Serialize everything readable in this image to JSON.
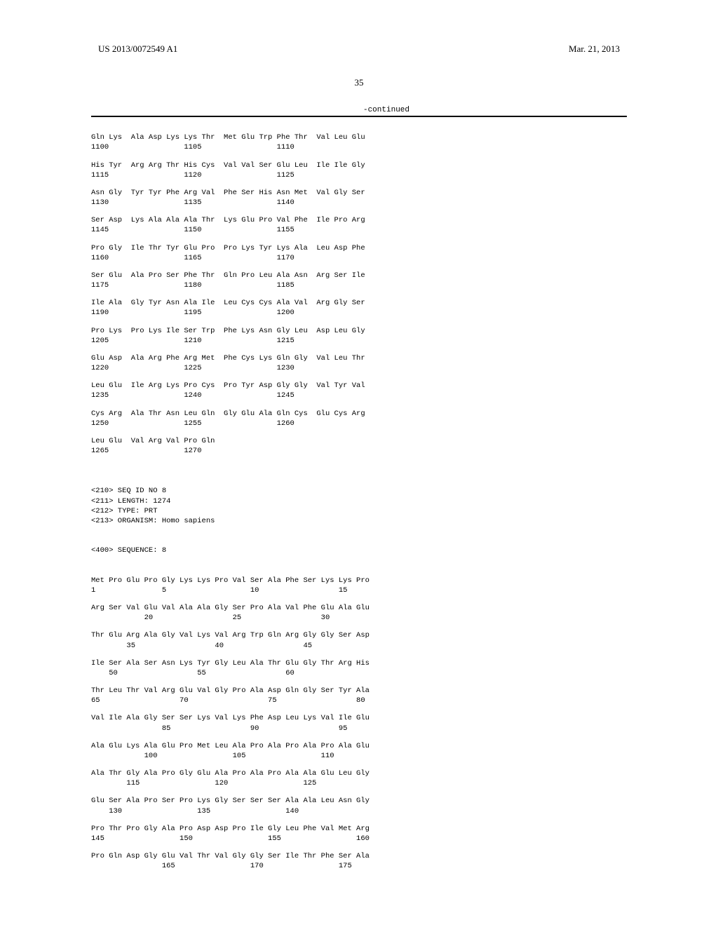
{
  "header": {
    "left": "US 2013/0072549 A1",
    "right": "Mar. 21, 2013",
    "page_number": "35",
    "continued": "-continued"
  },
  "seq1": {
    "rows": [
      {
        "aa": "Gln Lys  Ala Asp Lys Lys Thr  Met Glu Trp Phe Thr  Val Leu Glu",
        "pos": "1100                 1105                 1110"
      },
      {
        "aa": "His Tyr  Arg Arg Thr His Cys  Val Val Ser Glu Leu  Ile Ile Gly",
        "pos": "1115                 1120                 1125"
      },
      {
        "aa": "Asn Gly  Tyr Tyr Phe Arg Val  Phe Ser His Asn Met  Val Gly Ser",
        "pos": "1130                 1135                 1140"
      },
      {
        "aa": "Ser Asp  Lys Ala Ala Ala Thr  Lys Glu Pro Val Phe  Ile Pro Arg",
        "pos": "1145                 1150                 1155"
      },
      {
        "aa": "Pro Gly  Ile Thr Tyr Glu Pro  Pro Lys Tyr Lys Ala  Leu Asp Phe",
        "pos": "1160                 1165                 1170"
      },
      {
        "aa": "Ser Glu  Ala Pro Ser Phe Thr  Gln Pro Leu Ala Asn  Arg Ser Ile",
        "pos": "1175                 1180                 1185"
      },
      {
        "aa": "Ile Ala  Gly Tyr Asn Ala Ile  Leu Cys Cys Ala Val  Arg Gly Ser",
        "pos": "1190                 1195                 1200"
      },
      {
        "aa": "Pro Lys  Pro Lys Ile Ser Trp  Phe Lys Asn Gly Leu  Asp Leu Gly",
        "pos": "1205                 1210                 1215"
      },
      {
        "aa": "Glu Asp  Ala Arg Phe Arg Met  Phe Cys Lys Gln Gly  Val Leu Thr",
        "pos": "1220                 1225                 1230"
      },
      {
        "aa": "Leu Glu  Ile Arg Lys Pro Cys  Pro Tyr Asp Gly Gly  Val Tyr Val",
        "pos": "1235                 1240                 1245"
      },
      {
        "aa": "Cys Arg  Ala Thr Asn Leu Gln  Gly Glu Ala Gln Cys  Glu Cys Arg",
        "pos": "1250                 1255                 1260"
      },
      {
        "aa": "Leu Glu  Val Arg Val Pro Gln",
        "pos": "1265                 1270"
      }
    ]
  },
  "meta": {
    "lines": [
      "<210> SEQ ID NO 8",
      "<211> LENGTH: 1274",
      "<212> TYPE: PRT",
      "<213> ORGANISM: Homo sapiens"
    ]
  },
  "seq_header": "<400> SEQUENCE: 8",
  "seq2": {
    "rows": [
      {
        "aa": "Met Pro Glu Pro Gly Lys Lys Pro Val Ser Ala Phe Ser Lys Lys Pro",
        "pos": "1               5                   10                  15"
      },
      {
        "aa": "Arg Ser Val Glu Val Ala Ala Gly Ser Pro Ala Val Phe Glu Ala Glu",
        "pos": "            20                  25                  30"
      },
      {
        "aa": "Thr Glu Arg Ala Gly Val Lys Val Arg Trp Gln Arg Gly Gly Ser Asp",
        "pos": "        35                  40                  45"
      },
      {
        "aa": "Ile Ser Ala Ser Asn Lys Tyr Gly Leu Ala Thr Glu Gly Thr Arg His",
        "pos": "    50                  55                  60"
      },
      {
        "aa": "Thr Leu Thr Val Arg Glu Val Gly Pro Ala Asp Gln Gly Ser Tyr Ala",
        "pos": "65                  70                  75                  80"
      },
      {
        "aa": "Val Ile Ala Gly Ser Ser Lys Val Lys Phe Asp Leu Lys Val Ile Glu",
        "pos": "                85                  90                  95"
      },
      {
        "aa": "Ala Glu Lys Ala Glu Pro Met Leu Ala Pro Ala Pro Ala Pro Ala Glu",
        "pos": "            100                 105                 110"
      },
      {
        "aa": "Ala Thr Gly Ala Pro Gly Glu Ala Pro Ala Pro Ala Ala Glu Leu Gly",
        "pos": "        115                 120                 125"
      },
      {
        "aa": "Glu Ser Ala Pro Ser Pro Lys Gly Ser Ser Ser Ala Ala Leu Asn Gly",
        "pos": "    130                 135                 140"
      },
      {
        "aa": "Pro Thr Pro Gly Ala Pro Asp Asp Pro Ile Gly Leu Phe Val Met Arg",
        "pos": "145                 150                 155                 160"
      },
      {
        "aa": "Pro Gln Asp Gly Glu Val Thr Val Gly Gly Ser Ile Thr Phe Ser Ala",
        "pos": "                165                 170                 175"
      }
    ]
  }
}
